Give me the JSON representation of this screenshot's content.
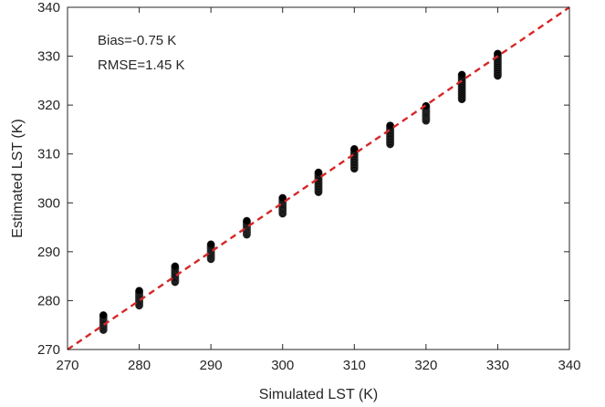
{
  "chart_data": {
    "type": "scatter",
    "xlabel": "Simulated LST (K)",
    "ylabel": "Estimated LST (K)",
    "xlim": [
      270,
      340
    ],
    "ylim": [
      270,
      340
    ],
    "xticks": [
      270,
      280,
      290,
      300,
      310,
      320,
      330,
      340
    ],
    "yticks": [
      270,
      280,
      290,
      300,
      310,
      320,
      330,
      340
    ],
    "grid": false,
    "annotations": [
      "Bias=-0.75 K",
      "RMSE=1.45 K"
    ],
    "reference_line": {
      "style": "dashed",
      "color": "#d62728",
      "from": [
        270,
        270
      ],
      "to": [
        340,
        340
      ]
    },
    "marker_color": "#000000",
    "series": [
      {
        "points": [
          {
            "x": 275,
            "y_min": 274.0,
            "y_max": 277.0
          },
          {
            "x": 280,
            "y_min": 279.0,
            "y_max": 282.0
          },
          {
            "x": 285,
            "y_min": 283.8,
            "y_max": 287.0
          },
          {
            "x": 290,
            "y_min": 288.5,
            "y_max": 291.5
          },
          {
            "x": 295,
            "y_min": 293.5,
            "y_max": 296.3
          },
          {
            "x": 300,
            "y_min": 297.8,
            "y_max": 301.0
          },
          {
            "x": 305,
            "y_min": 302.2,
            "y_max": 306.2
          },
          {
            "x": 310,
            "y_min": 307.0,
            "y_max": 311.0
          },
          {
            "x": 315,
            "y_min": 312.0,
            "y_max": 315.8
          },
          {
            "x": 320,
            "y_min": 316.8,
            "y_max": 319.8
          },
          {
            "x": 325,
            "y_min": 321.2,
            "y_max": 326.2
          },
          {
            "x": 330,
            "y_min": 326.0,
            "y_max": 330.5
          }
        ]
      }
    ]
  }
}
